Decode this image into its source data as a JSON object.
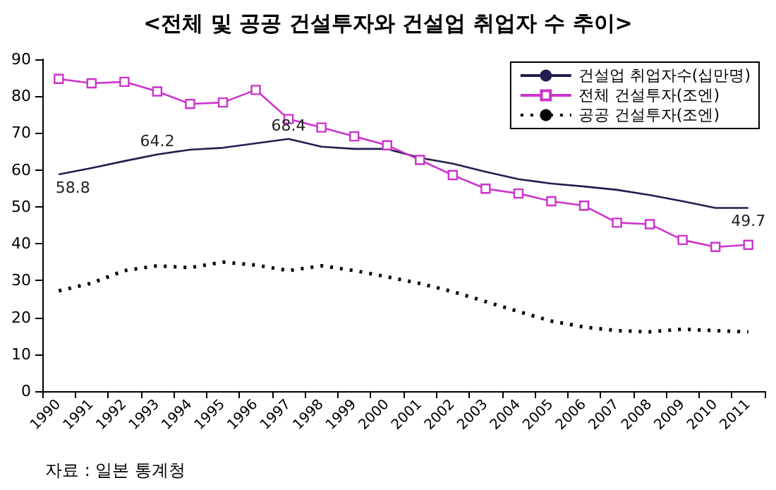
{
  "chart_data": {
    "type": "line",
    "title": "<전체 및 공공 건설투자와 건설업 취업자 수 추이>",
    "categories": [
      "1990",
      "1991",
      "1992",
      "1993",
      "1994",
      "1995",
      "1996",
      "1997",
      "1998",
      "1999",
      "2000",
      "2001",
      "2002",
      "2003",
      "2004",
      "2005",
      "2006",
      "2007",
      "2008",
      "2009",
      "2010",
      "2011"
    ],
    "series": [
      {
        "name": "건설업 취업자수(십만명)",
        "color": "#1f1f4f",
        "marker": "none",
        "line_style": "solid",
        "values": [
          58.8,
          60.5,
          62.4,
          64.2,
          65.5,
          66.0,
          67.2,
          68.4,
          66.3,
          65.7,
          65.7,
          63.3,
          61.7,
          59.5,
          57.5,
          56.3,
          55.5,
          54.6,
          53.2,
          51.5,
          49.7,
          49.7
        ],
        "value_labels": [
          "58.8",
          null,
          null,
          "64.2",
          null,
          null,
          null,
          "68.4",
          null,
          null,
          null,
          null,
          null,
          null,
          null,
          null,
          null,
          null,
          null,
          null,
          null,
          "49.7"
        ]
      },
      {
        "name": "전체 건설투자(조엔)",
        "color": "#cc33cc",
        "marker": "square",
        "line_style": "solid",
        "values": [
          84.7,
          83.5,
          83.9,
          81.3,
          77.9,
          78.3,
          81.7,
          73.8,
          71.5,
          69.1,
          66.7,
          62.7,
          58.6,
          54.9,
          53.6,
          51.5,
          50.3,
          45.7,
          45.3,
          41.0,
          39.1,
          39.7
        ]
      },
      {
        "name": "공공 건설투자(조엔)",
        "color": "#000000",
        "marker": "none",
        "line_style": "dotted",
        "values": [
          27.2,
          29.3,
          32.7,
          34.0,
          33.5,
          35.0,
          34.2,
          32.7,
          34.0,
          32.7,
          31.0,
          29.2,
          27.0,
          24.3,
          21.6,
          19.0,
          17.4,
          16.4,
          16.1,
          16.8,
          16.4,
          16.1
        ]
      }
    ],
    "ylim": [
      0,
      90
    ],
    "yticks": [
      0,
      10,
      20,
      30,
      40,
      50,
      60,
      70,
      80,
      90
    ],
    "grid": false,
    "legend": "top right",
    "annotations": [
      "자료 : 일본 통계청"
    ]
  }
}
